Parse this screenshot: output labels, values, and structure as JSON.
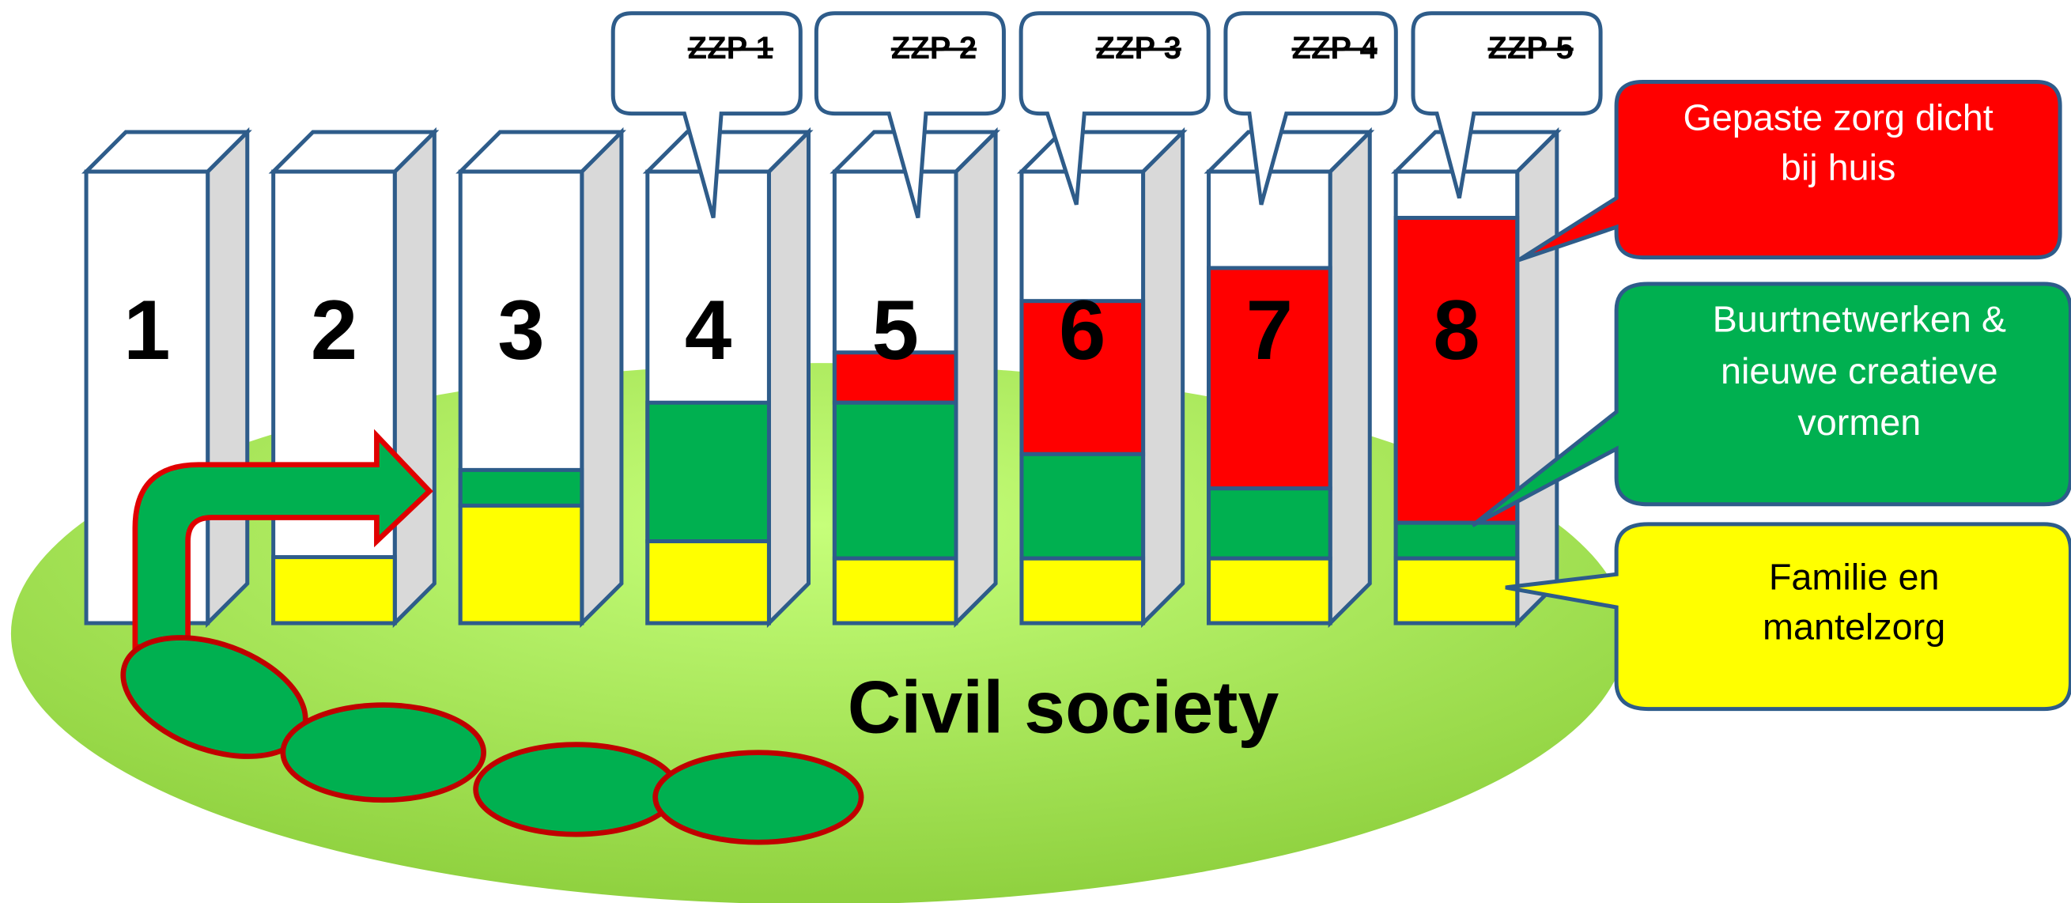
{
  "columns": [
    "1",
    "2",
    "3",
    "4",
    "5",
    "6",
    "7",
    "8"
  ],
  "zzp": [
    "ZZP 1",
    "ZZP 2",
    "ZZP 3",
    "ZZP 4",
    "ZZP 5"
  ],
  "callouts": {
    "red": [
      "Gepaste zorg dicht",
      "bij huis"
    ],
    "green": [
      "Buurtnetwerken &",
      "nieuwe creatieve",
      "vormen"
    ],
    "yellow": [
      "Familie en",
      "mantelzorg"
    ]
  },
  "ground_label": "Civil society"
}
